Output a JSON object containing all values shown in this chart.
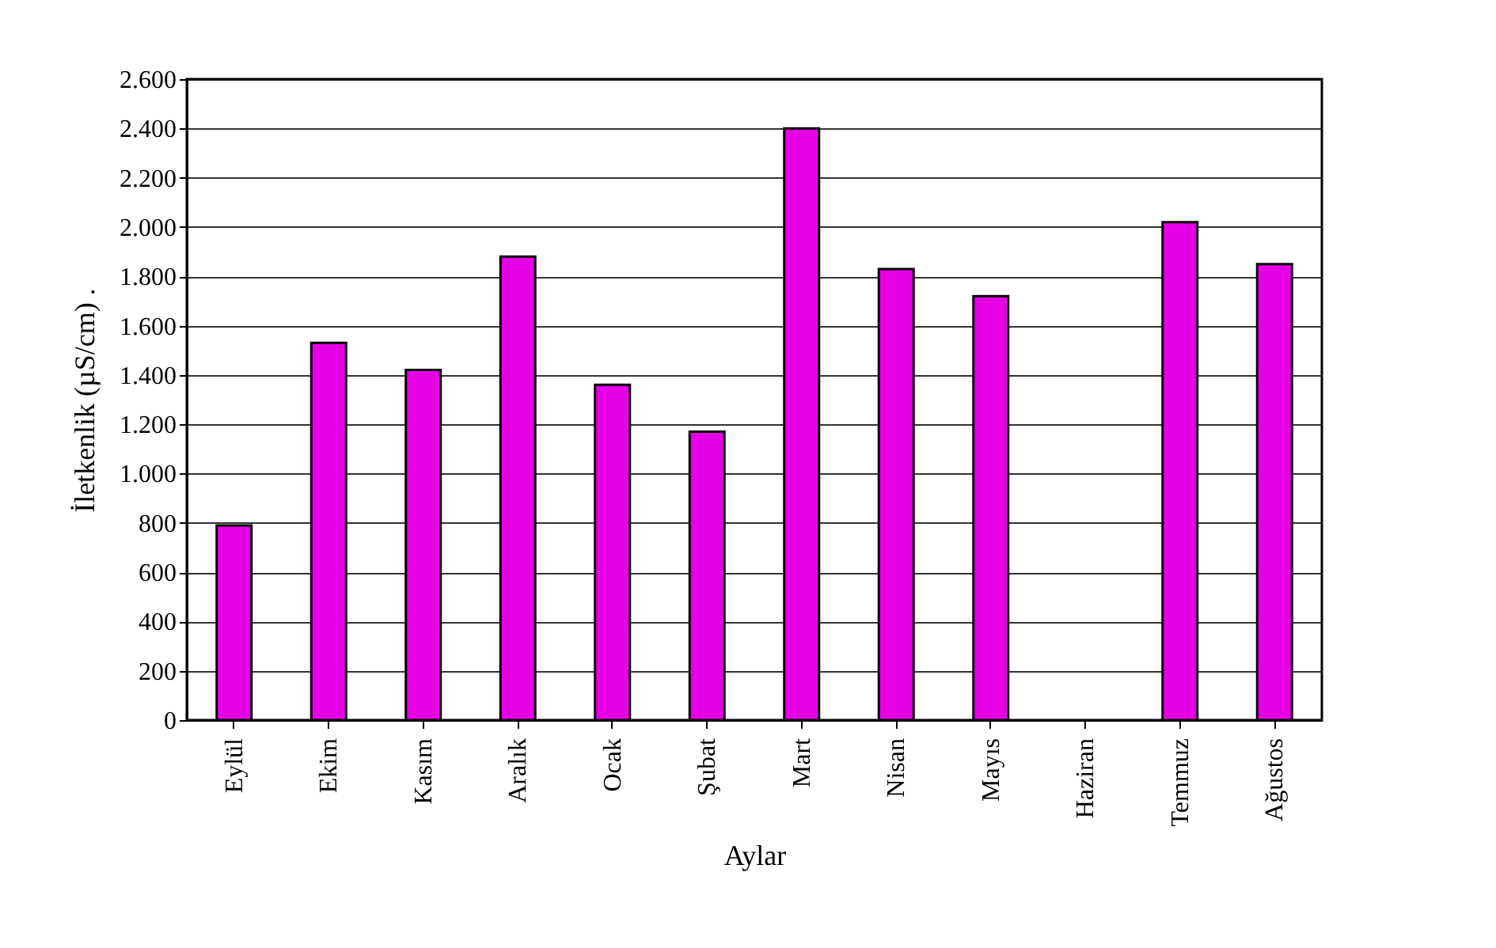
{
  "chart_data": {
    "type": "bar",
    "xlabel": "Aylar",
    "ylabel": "İletkenlik (µS/cm) .",
    "categories": [
      "Eylül",
      "Ekim",
      "Kasım",
      "Aralık",
      "Ocak",
      "Şubat",
      "Mart",
      "Nisan",
      "Mayıs",
      "Haziran",
      "Temmuz",
      "Ağustos"
    ],
    "values": [
      790,
      1530,
      1420,
      1880,
      1360,
      1170,
      2400,
      1830,
      1720,
      null,
      2020,
      1850
    ],
    "color": "#e600e6",
    "ylim": [
      0,
      2600
    ],
    "yticks": [
      0,
      200,
      400,
      600,
      800,
      {
        "value": 1000,
        "label": "1.000"
      },
      {
        "value": 1200,
        "label": "1.200"
      },
      {
        "value": 1400,
        "label": "1.400"
      },
      {
        "value": 1600,
        "label": "1.600"
      },
      {
        "value": 1800,
        "label": "1.800"
      },
      {
        "value": 2000,
        "label": "2.000"
      },
      {
        "value": 2200,
        "label": "2.200"
      },
      {
        "value": 2400,
        "label": "2.400"
      },
      {
        "value": 2600,
        "label": "2.600"
      }
    ],
    "grid": "y"
  }
}
